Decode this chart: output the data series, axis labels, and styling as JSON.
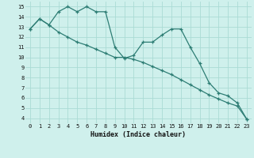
{
  "line1_x": [
    0,
    1,
    2,
    3,
    4,
    5,
    6,
    7,
    8,
    9,
    10,
    11,
    12,
    13,
    14,
    15,
    16,
    17,
    18,
    19,
    20,
    21,
    22,
    23
  ],
  "line1_y": [
    12.8,
    13.8,
    13.2,
    14.5,
    15.0,
    14.5,
    15.0,
    14.5,
    14.5,
    11.0,
    9.9,
    10.2,
    11.5,
    11.5,
    12.2,
    12.8,
    12.8,
    11.0,
    9.4,
    7.5,
    6.5,
    6.2,
    5.5,
    3.9
  ],
  "line2_x": [
    0,
    1,
    2,
    3,
    4,
    5,
    6,
    7,
    8,
    9,
    10,
    11,
    12,
    13,
    14,
    15,
    16,
    17,
    18,
    19,
    20,
    21,
    22,
    23
  ],
  "line2_y": [
    12.8,
    13.8,
    13.2,
    12.5,
    12.0,
    11.5,
    11.2,
    10.8,
    10.4,
    10.0,
    10.0,
    9.8,
    9.5,
    9.1,
    8.7,
    8.3,
    7.8,
    7.3,
    6.8,
    6.3,
    5.9,
    5.5,
    5.2,
    3.9
  ],
  "line_color": "#2d7d74",
  "bg_color": "#cff0ec",
  "grid_color": "#aadbd5",
  "xlabel": "Humidex (Indice chaleur)",
  "ylim": [
    3.5,
    15.5
  ],
  "xlim": [
    -0.5,
    23.5
  ],
  "yticks": [
    4,
    5,
    6,
    7,
    8,
    9,
    10,
    11,
    12,
    13,
    14,
    15
  ],
  "xticks": [
    0,
    1,
    2,
    3,
    4,
    5,
    6,
    7,
    8,
    9,
    10,
    11,
    12,
    13,
    14,
    15,
    16,
    17,
    18,
    19,
    20,
    21,
    22,
    23
  ]
}
